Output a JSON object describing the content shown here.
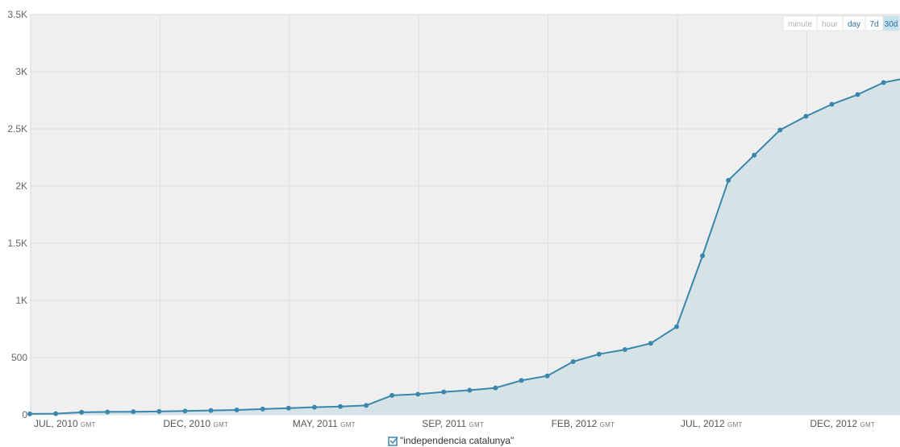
{
  "chart_data": {
    "type": "area",
    "series": [
      {
        "name": "\"independencia catalunya\"",
        "color": "#3a87ad",
        "fill": "#d5e3e6",
        "values": [
          8,
          10,
          22,
          25,
          27,
          29,
          33,
          38,
          42,
          50,
          58,
          66,
          72,
          82,
          170,
          180,
          200,
          215,
          235,
          300,
          340,
          465,
          530,
          570,
          625,
          770,
          1390,
          2050,
          2270,
          2490,
          2610,
          2715,
          2800,
          2905,
          2950
        ]
      }
    ],
    "x_tick_labels": [
      {
        "label": "JUL, 2010",
        "suffix": "GMT",
        "index": 0
      },
      {
        "label": "DEC, 2010",
        "suffix": "GMT",
        "index": 5
      },
      {
        "label": "MAY, 2011",
        "suffix": "GMT",
        "index": 10
      },
      {
        "label": "SEP, 2011",
        "suffix": "GMT",
        "index": 15
      },
      {
        "label": "FEB, 2012",
        "suffix": "GMT",
        "index": 20
      },
      {
        "label": "JUL, 2012",
        "suffix": "GMT",
        "index": 25
      },
      {
        "label": "DEC, 2012",
        "suffix": "GMT",
        "index": 30
      }
    ],
    "y_ticks": [
      {
        "value": 0,
        "label": "0"
      },
      {
        "value": 500,
        "label": "500"
      },
      {
        "value": 1000,
        "label": "1K"
      },
      {
        "value": 1500,
        "label": "1.5K"
      },
      {
        "value": 2000,
        "label": "2K"
      },
      {
        "value": 2500,
        "label": "2.5K"
      },
      {
        "value": 3000,
        "label": "3K"
      },
      {
        "value": 3500,
        "label": "3.5K"
      }
    ],
    "ylim": [
      0,
      3500
    ],
    "grid": true,
    "legend": {
      "position": "bottom-center",
      "checked": true
    }
  },
  "range_selector": {
    "options": [
      "minute",
      "hour",
      "day",
      "7d",
      "30d"
    ],
    "active": [
      "day",
      "7d",
      "30d"
    ],
    "selected": "30d"
  },
  "colors": {
    "plot_background": "#efefef",
    "grid": "#dedede",
    "line": "#3a87ad",
    "area": "#d5e3e6",
    "selected_range_bg": "#c4e2ee"
  }
}
